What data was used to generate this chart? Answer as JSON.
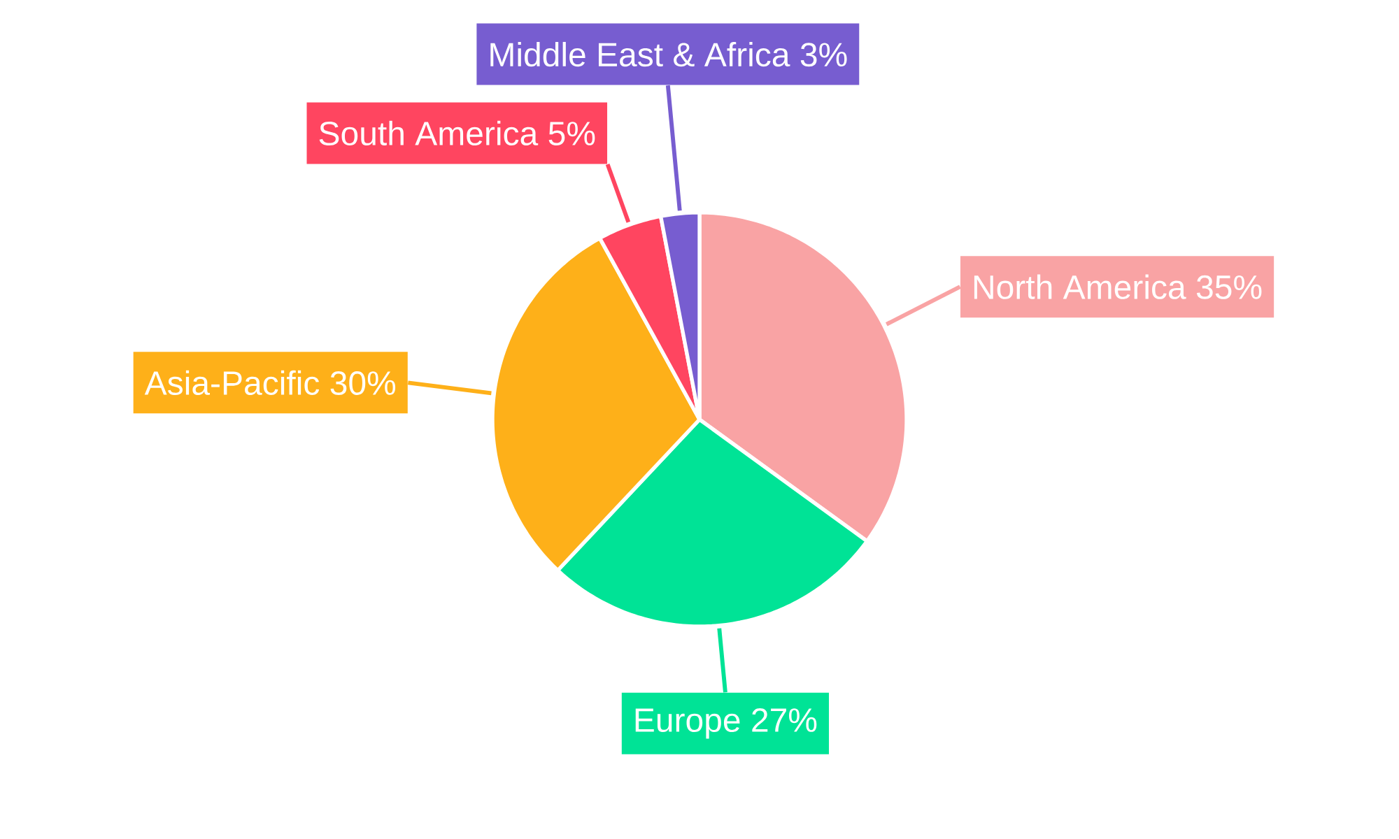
{
  "chart_data": {
    "type": "pie",
    "categories": [
      "North America",
      "Europe",
      "Asia-Pacific",
      "South America",
      "Middle East & Africa"
    ],
    "values": [
      35,
      27,
      30,
      5,
      3
    ],
    "value_labels": [
      "35%",
      "27%",
      "30%",
      "5%",
      "3%"
    ],
    "colors": [
      "#f9a3a4",
      "#00e396",
      "#feb019",
      "#ff4560",
      "#775dd0"
    ]
  }
}
